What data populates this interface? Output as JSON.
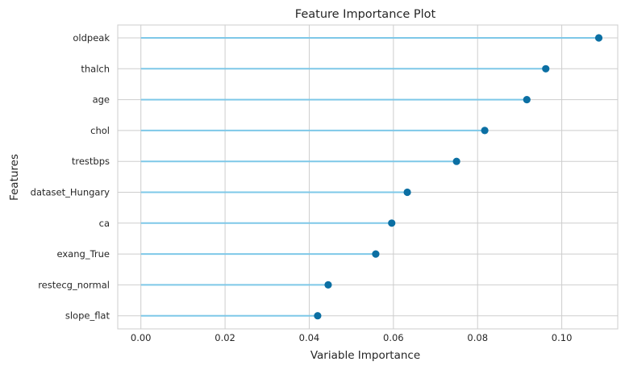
{
  "chart_data": {
    "type": "lollipop",
    "title": "Feature Importance Plot",
    "xlabel": "Variable Importance",
    "ylabel": "Features",
    "categories": [
      "oldpeak",
      "thalch",
      "age",
      "chol",
      "trestbps",
      "dataset_Hungary",
      "ca",
      "exang_True",
      "restecg_normal",
      "slope_flat"
    ],
    "values": [
      0.1088,
      0.0962,
      0.0917,
      0.0817,
      0.075,
      0.0633,
      0.0596,
      0.0558,
      0.0445,
      0.042
    ],
    "xlim": [
      -0.0055,
      0.1133
    ],
    "xticks": [
      0.0,
      0.02,
      0.04,
      0.06,
      0.08,
      0.1
    ],
    "xtick_labels": [
      "0.00",
      "0.02",
      "0.04",
      "0.06",
      "0.08",
      "0.10"
    ],
    "grid": true,
    "colors": {
      "stem": "#7ec8e8",
      "marker": "#0b6fa3",
      "grid": "#cdcdcd",
      "text": "#262626",
      "background": "#ffffff"
    }
  }
}
